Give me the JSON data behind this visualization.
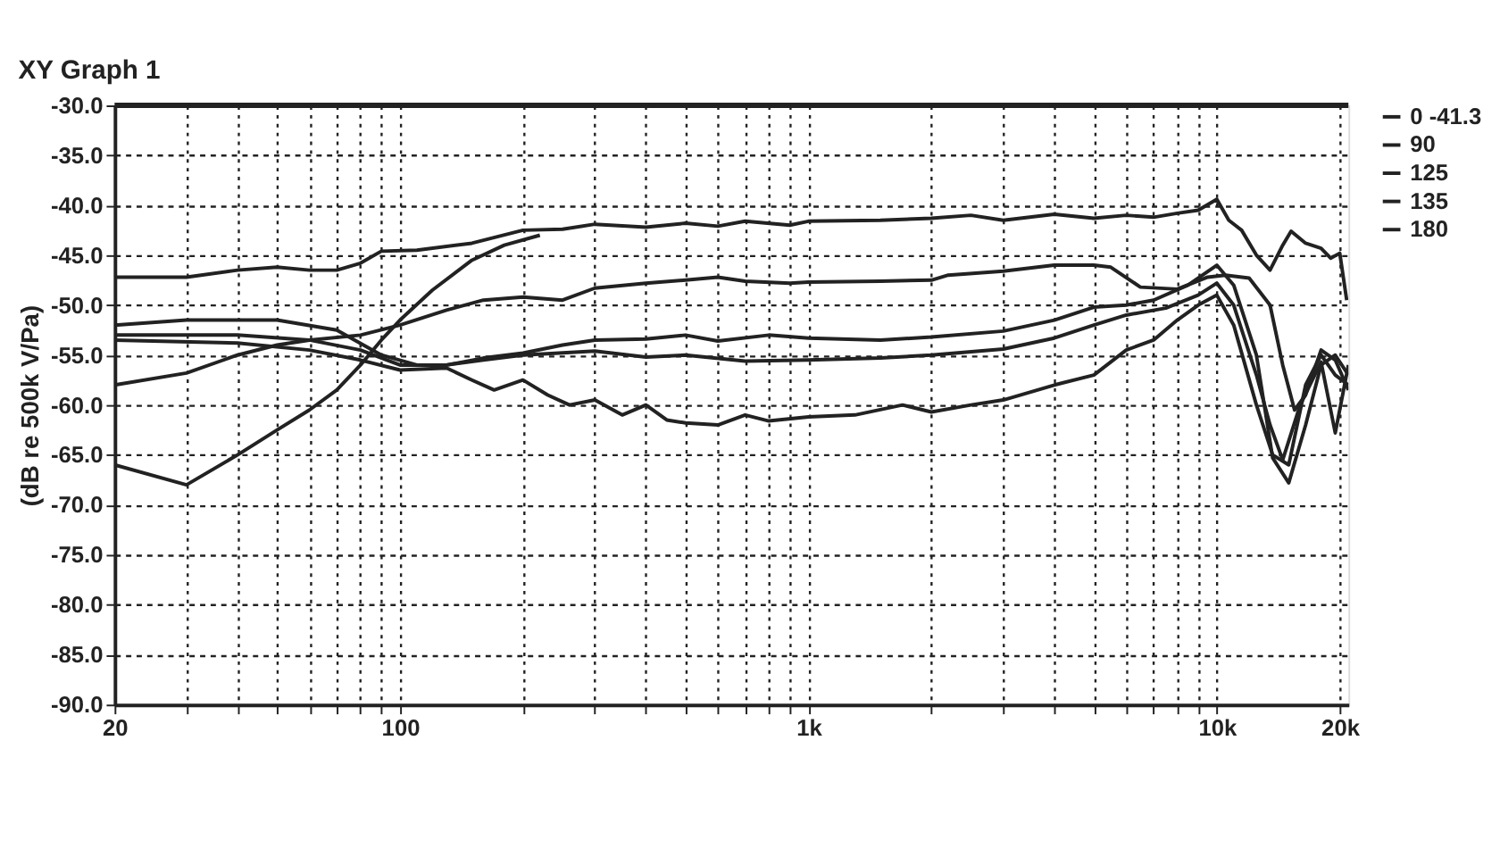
{
  "chart_data": {
    "type": "line",
    "title": "XY Graph 1",
    "ylabel": "(dB re 500k V/Pa)",
    "log": "x",
    "grid": true,
    "legend": "top right",
    "line_style": "solid",
    "marker": "none",
    "xlim": [
      20,
      21000
    ],
    "ylim": [
      -90,
      -30
    ],
    "xticks": [
      20,
      {
        "value": 30,
        "label": null
      },
      {
        "value": 40,
        "label": null
      },
      {
        "value": 50,
        "label": null
      },
      {
        "value": 60,
        "label": null
      },
      {
        "value": 70,
        "label": null
      },
      {
        "value": 80,
        "label": null
      },
      {
        "value": 90,
        "label": null
      },
      100,
      {
        "value": 200,
        "label": null
      },
      {
        "value": 300,
        "label": null
      },
      {
        "value": 400,
        "label": null
      },
      {
        "value": 500,
        "label": null
      },
      {
        "value": 600,
        "label": null
      },
      {
        "value": 700,
        "label": null
      },
      {
        "value": 800,
        "label": null
      },
      {
        "value": 900,
        "label": null
      },
      {
        "value": 1000,
        "label": "1k"
      },
      {
        "value": 2000,
        "label": null
      },
      {
        "value": 3000,
        "label": null
      },
      {
        "value": 4000,
        "label": null
      },
      {
        "value": 5000,
        "label": null
      },
      {
        "value": 6000,
        "label": null
      },
      {
        "value": 7000,
        "label": null
      },
      {
        "value": 8000,
        "label": null
      },
      {
        "value": 9000,
        "label": null
      },
      {
        "value": 10000,
        "label": "10k"
      },
      {
        "value": 20000,
        "label": "20k"
      }
    ],
    "yticks": [
      {
        "value": -30,
        "label": "-30.0"
      },
      {
        "value": -35,
        "label": "-35.0"
      },
      {
        "value": -40,
        "label": "-40.0"
      },
      {
        "value": -45,
        "label": "-45.0"
      },
      {
        "value": -50,
        "label": "-50.0"
      },
      {
        "value": -55,
        "label": "-55.0"
      },
      {
        "value": -60,
        "label": "-60.0"
      },
      {
        "value": -65,
        "label": "-65.0"
      },
      {
        "value": -70,
        "label": "-70.0"
      },
      {
        "value": -75,
        "label": "-75.0"
      },
      {
        "value": -80,
        "label": "-80.0"
      },
      {
        "value": -85,
        "label": "-85.0"
      },
      {
        "value": -90,
        "label": "-90.0"
      }
    ],
    "series": [
      {
        "name": "0 -41.3",
        "color": "#222222",
        "x": [
          20,
          30,
          40,
          50,
          60,
          70,
          80,
          90,
          110,
          150,
          200,
          250,
          300,
          400,
          500,
          600,
          700,
          900,
          1000,
          1500,
          2000,
          2500,
          3000,
          4000,
          5000,
          6000,
          7000,
          8000,
          9000,
          10000,
          10700,
          11500,
          12500,
          13500,
          14500,
          15200,
          16500,
          18000,
          19000,
          20000,
          20800
        ],
        "values": [
          -47.2,
          -47.2,
          -46.5,
          -46.2,
          -46.5,
          -46.5,
          -45.8,
          -44.6,
          -44.5,
          -43.8,
          -42.5,
          -42.4,
          -41.9,
          -42.2,
          -41.8,
          -42.1,
          -41.6,
          -42.0,
          -41.6,
          -41.5,
          -41.3,
          -41.0,
          -41.5,
          -40.9,
          -41.3,
          -41.0,
          -41.2,
          -40.8,
          -40.5,
          -39.4,
          -41.5,
          -42.5,
          -45,
          -46.5,
          -44,
          -42.6,
          -43.8,
          -44.3,
          -45.3,
          -44.8,
          -49.5
        ]
      },
      {
        "name": "90",
        "color": "#222222",
        "x": [
          20,
          30,
          40,
          50,
          60,
          80,
          100,
          130,
          160,
          200,
          250,
          300,
          400,
          500,
          600,
          700,
          900,
          1000,
          1500,
          2000,
          2200,
          3000,
          4000,
          5000,
          5500,
          6500,
          8000,
          9500,
          10500,
          12000,
          13500,
          14500,
          15500,
          16500,
          18000,
          19500,
          21000
        ],
        "values": [
          -58,
          -56.8,
          -55,
          -54,
          -53.5,
          -53,
          -52,
          -50.5,
          -49.5,
          -49.2,
          -49.5,
          -48.3,
          -47.8,
          -47.5,
          -47.2,
          -47.6,
          -47.8,
          -47.7,
          -47.6,
          -47.5,
          -47,
          -46.6,
          -46,
          -46,
          -46.2,
          -48.2,
          -48.4,
          -47.2,
          -47,
          -47.3,
          -50,
          -56,
          -60.5,
          -59,
          -54.5,
          -55.5,
          -58.5
        ]
      },
      {
        "name": "125",
        "color": "#222222",
        "x": [
          20,
          30,
          50,
          70,
          90,
          110,
          130,
          160,
          200,
          250,
          300,
          400,
          500,
          600,
          800,
          1000,
          1500,
          2000,
          3000,
          4000,
          5000,
          6000,
          7000,
          8500,
          10000,
          11000,
          12500,
          13700,
          15000,
          16500,
          18000,
          19500,
          21000
        ],
        "values": [
          -52,
          -51.5,
          -51.5,
          -52.5,
          -55,
          -56,
          -56,
          -55.3,
          -54.8,
          -54,
          -53.5,
          -53.4,
          -53,
          -53.6,
          -53,
          -53.3,
          -53.5,
          -53.2,
          -52.6,
          -51.5,
          -50.2,
          -50,
          -49.5,
          -48,
          -46,
          -48,
          -55,
          -65.3,
          -67.8,
          -62,
          -56,
          -55,
          -57
        ]
      },
      {
        "name": "135",
        "color": "#222222",
        "x": [
          20,
          40,
          60,
          80,
          100,
          130,
          160,
          200,
          300,
          400,
          500,
          700,
          1000,
          1500,
          2000,
          3000,
          4000,
          5000,
          6000,
          7500,
          9000,
          10000,
          11000,
          12500,
          13500,
          14500,
          16000,
          18000,
          19500,
          21000
        ],
        "values": [
          -53,
          -53,
          -53.5,
          -54.5,
          -56,
          -56,
          -55.5,
          -55,
          -54.6,
          -55.2,
          -55,
          -55.6,
          -55.5,
          -55.3,
          -55,
          -54.4,
          -53.3,
          -52,
          -51,
          -50.3,
          -49,
          -47.8,
          -50,
          -57,
          -62,
          -65.5,
          -60,
          -55.7,
          -62.8,
          -56
        ]
      },
      {
        "name": "180",
        "color": "#222222",
        "x": [
          20,
          40,
          60,
          80,
          100,
          130,
          150,
          170,
          200,
          230,
          260,
          300,
          350,
          400,
          450,
          500,
          600,
          700,
          800,
          1000,
          1300,
          1700,
          2000,
          2500,
          3000,
          4000,
          5000,
          6000,
          7000,
          8000,
          9000,
          10000,
          11000,
          12500,
          13700,
          15000,
          16500,
          18000,
          19500,
          21000
        ],
        "values": [
          -53.5,
          -53.8,
          -54.5,
          -55.5,
          -56.5,
          -56.3,
          -57.5,
          -58.5,
          -57.5,
          -59,
          -60,
          -59.5,
          -61,
          -60,
          -61.5,
          -61.8,
          -62,
          -61,
          -61.6,
          -61.2,
          -61,
          -60,
          -60.7,
          -60,
          -59.5,
          -58,
          -57,
          -54.5,
          -53.5,
          -51.5,
          -50,
          -49,
          -52,
          -60,
          -65,
          -66,
          -58,
          -55,
          -57,
          -58
        ]
      },
      {
        "color": "#222222",
        "x": [
          20,
          30,
          40,
          50,
          60,
          70,
          80,
          90,
          100,
          120,
          150,
          180,
          220
        ],
        "values": [
          -66,
          -68,
          -65,
          -62.5,
          -60.5,
          -58.5,
          -56,
          -53.5,
          -51.5,
          -48.5,
          -45.5,
          -44,
          -43
        ]
      }
    ]
  }
}
